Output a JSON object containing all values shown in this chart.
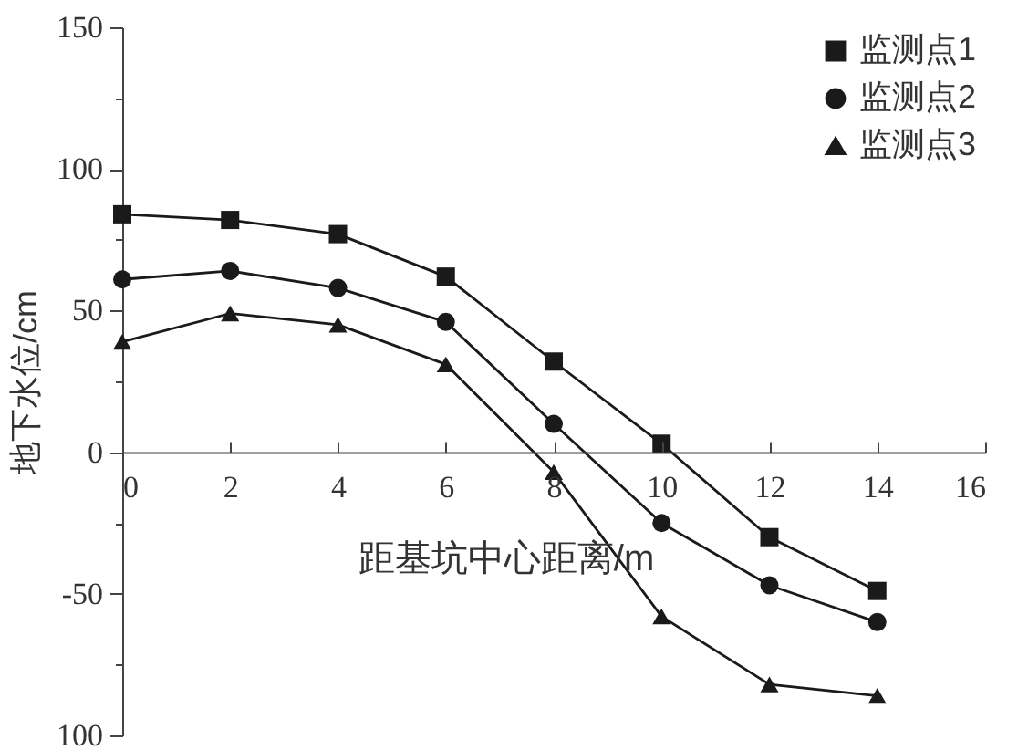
{
  "chart_data": {
    "type": "line",
    "xlabel": "距基坑中心距离/m",
    "ylabel": "地下水位/cm",
    "x": [
      0,
      2,
      4,
      6,
      8,
      10,
      12,
      14
    ],
    "series": [
      {
        "name": "监测点1",
        "color": "#1a1a1a",
        "marker": "square",
        "values": [
          84,
          82,
          77,
          62,
          32,
          3,
          -30,
          -49
        ]
      },
      {
        "name": "监测点2",
        "color": "#1a1a1a",
        "marker": "circle",
        "values": [
          61,
          64,
          58,
          46,
          10,
          -25,
          -47,
          -60
        ]
      },
      {
        "name": "监测点3",
        "color": "#1a1a1a",
        "marker": "triangle",
        "values": [
          39,
          49,
          45,
          31,
          -7,
          -58,
          -82,
          -86
        ]
      }
    ],
    "xlim": [
      0,
      16
    ],
    "xticks": [
      0,
      2,
      4,
      6,
      8,
      10,
      12,
      14,
      16
    ],
    "ylim": [
      -100,
      150
    ],
    "yticks": [
      {
        "value": -100,
        "label": "100"
      },
      {
        "value": -75,
        "label": null
      },
      -50,
      {
        "value": -25,
        "label": null
      },
      0,
      {
        "value": 25,
        "label": null
      },
      50,
      {
        "value": 75,
        "label": null
      },
      100,
      {
        "value": 125,
        "label": null
      },
      150
    ],
    "grid": false,
    "legend": "top right",
    "line_style": "solid"
  }
}
